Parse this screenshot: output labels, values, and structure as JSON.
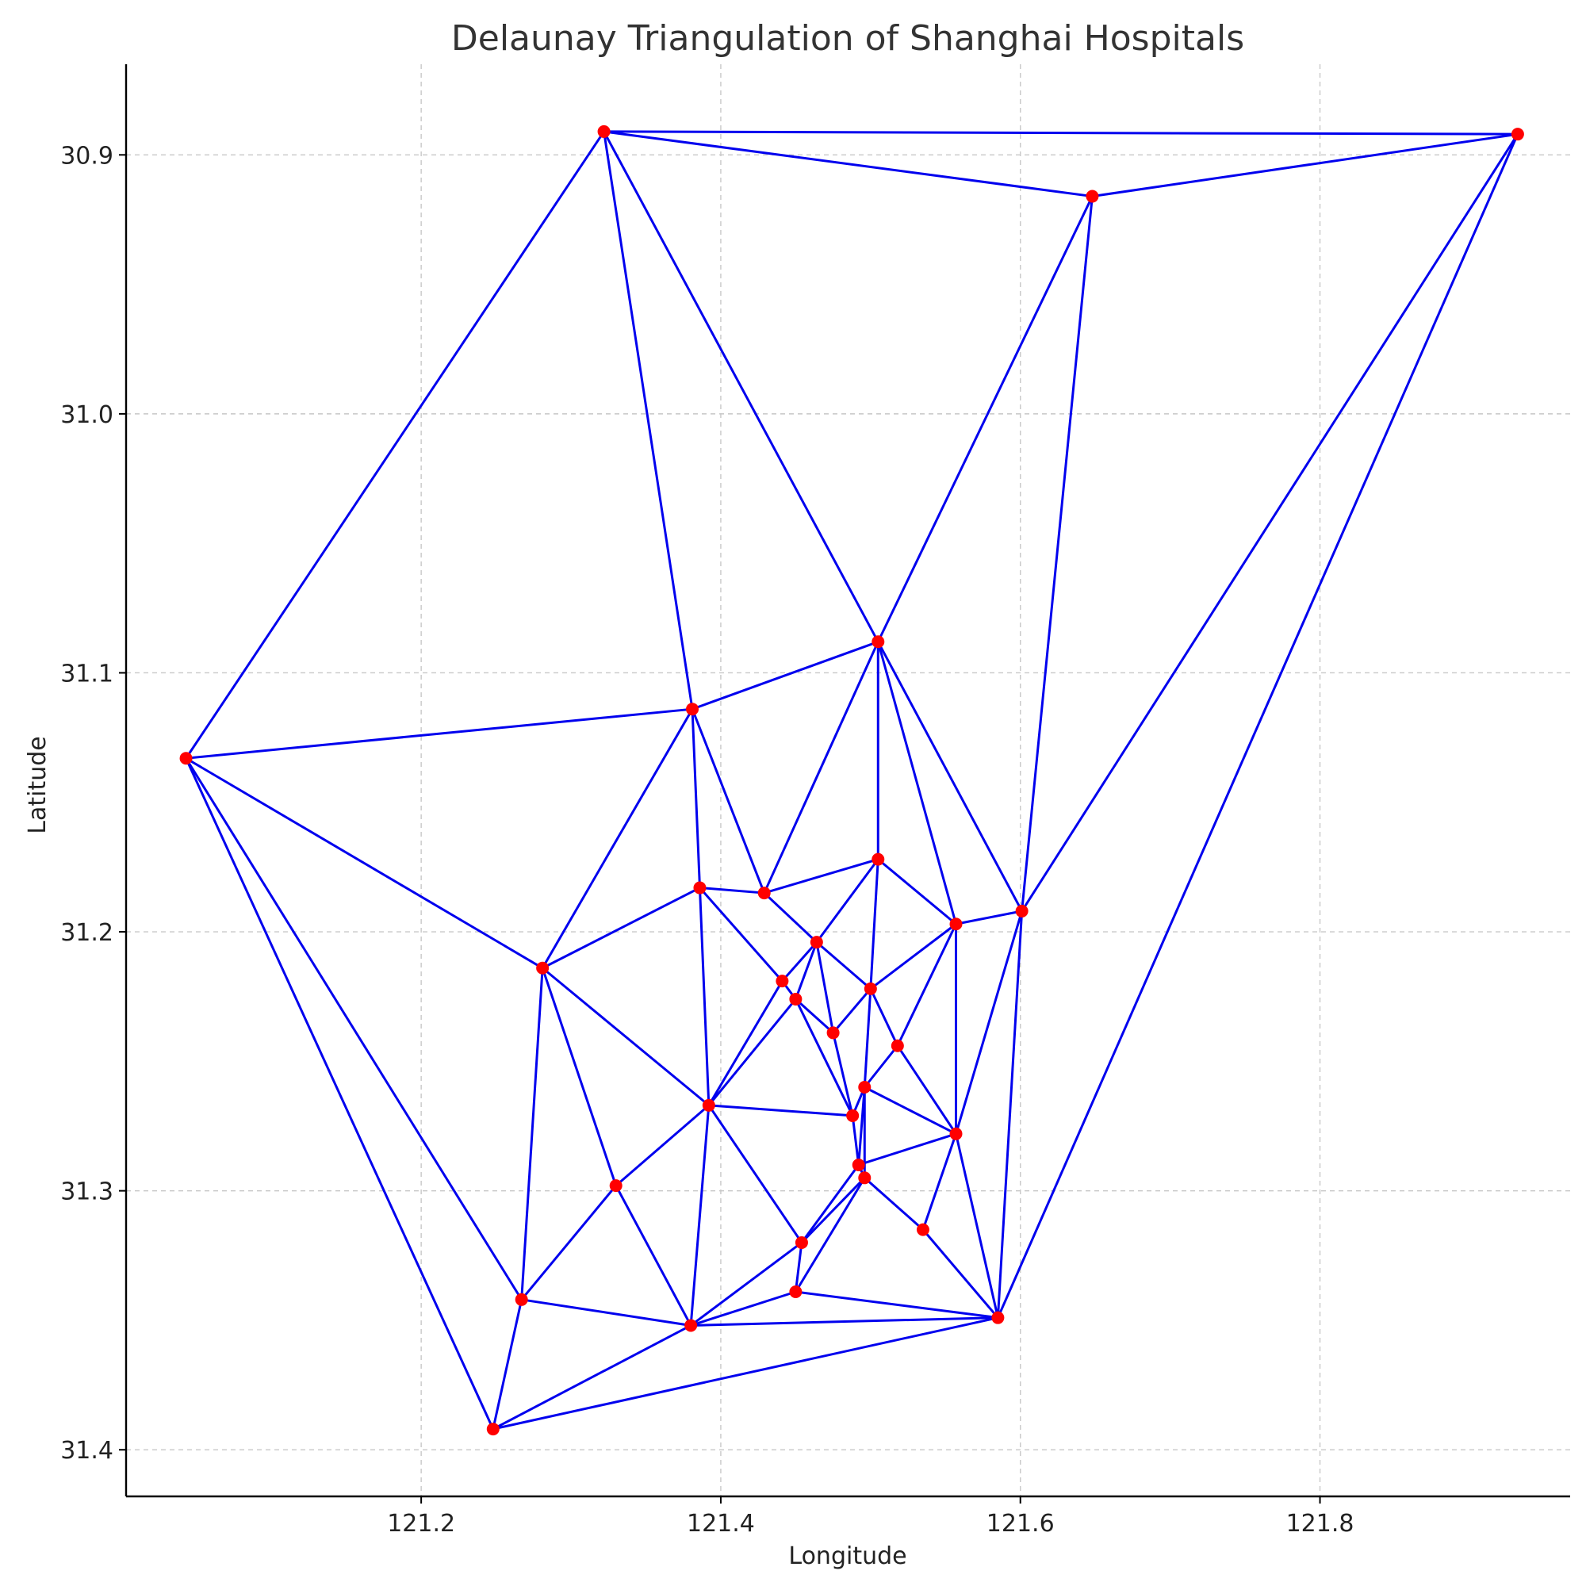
{
  "chart_data": {
    "type": "scatter",
    "title": "Delaunay Triangulation of Shanghai Hospitals",
    "xlabel": "Longitude",
    "ylabel": "Latitude",
    "xlim": [
      121.003,
      121.967
    ],
    "ylim": [
      30.865,
      31.418
    ],
    "y_inverted": true,
    "grid": true,
    "xticks": [
      121.2,
      121.4,
      121.6,
      121.8
    ],
    "xtick_labels": [
      "121.2",
      "121.4",
      "121.6",
      "121.8"
    ],
    "yticks": [
      30.9,
      31.0,
      31.1,
      31.2,
      31.3,
      31.4
    ],
    "ytick_labels": [
      "30.9",
      "31.0",
      "31.1",
      "31.2",
      "31.3",
      "31.4"
    ],
    "point_color": "#ff0000",
    "edge_color": "#0000ee",
    "points": [
      {
        "x": 121.322,
        "y": 30.891
      },
      {
        "x": 121.932,
        "y": 30.892
      },
      {
        "x": 121.648,
        "y": 30.916
      },
      {
        "x": 121.505,
        "y": 31.088
      },
      {
        "x": 121.381,
        "y": 31.114
      },
      {
        "x": 121.043,
        "y": 31.133
      },
      {
        "x": 121.505,
        "y": 31.172
      },
      {
        "x": 121.386,
        "y": 31.183
      },
      {
        "x": 121.429,
        "y": 31.185
      },
      {
        "x": 121.601,
        "y": 31.192
      },
      {
        "x": 121.557,
        "y": 31.197
      },
      {
        "x": 121.464,
        "y": 31.204
      },
      {
        "x": 121.281,
        "y": 31.214
      },
      {
        "x": 121.441,
        "y": 31.219
      },
      {
        "x": 121.5,
        "y": 31.222
      },
      {
        "x": 121.45,
        "y": 31.226
      },
      {
        "x": 121.475,
        "y": 31.239
      },
      {
        "x": 121.518,
        "y": 31.244
      },
      {
        "x": 121.496,
        "y": 31.26
      },
      {
        "x": 121.392,
        "y": 31.267
      },
      {
        "x": 121.488,
        "y": 31.271
      },
      {
        "x": 121.557,
        "y": 31.278
      },
      {
        "x": 121.492,
        "y": 31.29
      },
      {
        "x": 121.496,
        "y": 31.295
      },
      {
        "x": 121.33,
        "y": 31.298
      },
      {
        "x": 121.535,
        "y": 31.315
      },
      {
        "x": 121.454,
        "y": 31.32
      },
      {
        "x": 121.267,
        "y": 31.342
      },
      {
        "x": 121.45,
        "y": 31.339
      },
      {
        "x": 121.585,
        "y": 31.349
      },
      {
        "x": 121.38,
        "y": 31.352
      },
      {
        "x": 121.248,
        "y": 31.392
      }
    ],
    "edges": [
      [
        0,
        1
      ],
      [
        0,
        2
      ],
      [
        1,
        2
      ],
      [
        0,
        5
      ],
      [
        0,
        4
      ],
      [
        0,
        3
      ],
      [
        2,
        3
      ],
      [
        2,
        9
      ],
      [
        1,
        9
      ],
      [
        1,
        29
      ],
      [
        4,
        5
      ],
      [
        3,
        4
      ],
      [
        5,
        12
      ],
      [
        5,
        27
      ],
      [
        5,
        31
      ],
      [
        4,
        12
      ],
      [
        4,
        7
      ],
      [
        4,
        8
      ],
      [
        3,
        8
      ],
      [
        3,
        6
      ],
      [
        3,
        10
      ],
      [
        3,
        9
      ],
      [
        6,
        8
      ],
      [
        6,
        11
      ],
      [
        6,
        14
      ],
      [
        6,
        10
      ],
      [
        7,
        8
      ],
      [
        7,
        12
      ],
      [
        7,
        13
      ],
      [
        7,
        19
      ],
      [
        8,
        11
      ],
      [
        9,
        10
      ],
      [
        9,
        21
      ],
      [
        9,
        29
      ],
      [
        10,
        14
      ],
      [
        10,
        17
      ],
      [
        10,
        21
      ],
      [
        11,
        13
      ],
      [
        11,
        15
      ],
      [
        11,
        16
      ],
      [
        11,
        14
      ],
      [
        12,
        19
      ],
      [
        12,
        24
      ],
      [
        12,
        27
      ],
      [
        13,
        15
      ],
      [
        13,
        19
      ],
      [
        14,
        16
      ],
      [
        14,
        17
      ],
      [
        14,
        18
      ],
      [
        15,
        16
      ],
      [
        15,
        19
      ],
      [
        15,
        20
      ],
      [
        16,
        20
      ],
      [
        17,
        18
      ],
      [
        17,
        21
      ],
      [
        18,
        20
      ],
      [
        18,
        21
      ],
      [
        18,
        22
      ],
      [
        18,
        23
      ],
      [
        19,
        20
      ],
      [
        19,
        24
      ],
      [
        19,
        26
      ],
      [
        19,
        30
      ],
      [
        20,
        22
      ],
      [
        21,
        22
      ],
      [
        21,
        25
      ],
      [
        21,
        29
      ],
      [
        22,
        23
      ],
      [
        22,
        26
      ],
      [
        23,
        25
      ],
      [
        23,
        26
      ],
      [
        23,
        28
      ],
      [
        24,
        27
      ],
      [
        24,
        30
      ],
      [
        25,
        29
      ],
      [
        26,
        28
      ],
      [
        26,
        30
      ],
      [
        27,
        30
      ],
      [
        27,
        31
      ],
      [
        28,
        30
      ],
      [
        28,
        29
      ],
      [
        29,
        30
      ],
      [
        29,
        31
      ],
      [
        30,
        31
      ]
    ]
  }
}
